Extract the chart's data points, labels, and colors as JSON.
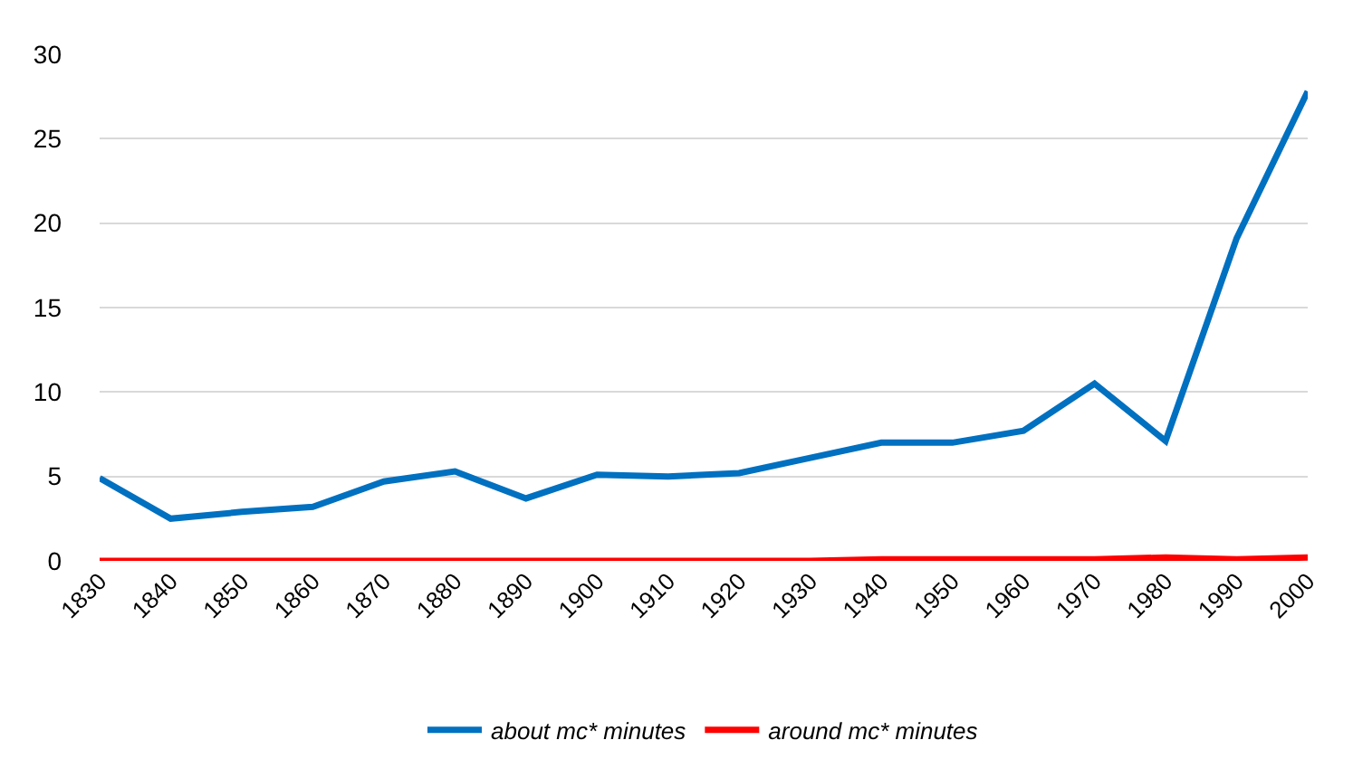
{
  "chart_data": {
    "type": "line",
    "categories": [
      "1830",
      "1840",
      "1850",
      "1860",
      "1870",
      "1880",
      "1890",
      "1900",
      "1910",
      "1920",
      "1930",
      "1940",
      "1950",
      "1960",
      "1970",
      "1980",
      "1990",
      "2000"
    ],
    "series": [
      {
        "name": "about mc* minutes",
        "color": "#0070c0",
        "values": [
          4.9,
          2.5,
          2.9,
          3.2,
          4.7,
          5.3,
          3.7,
          5.1,
          5.0,
          5.2,
          6.1,
          7.0,
          7.0,
          7.7,
          10.5,
          7.1,
          19.1,
          27.8
        ]
      },
      {
        "name": "around mc* minutes",
        "color": "#ff0000",
        "values": [
          0,
          0,
          0,
          0,
          0,
          0,
          0,
          0,
          0,
          0,
          0,
          0.1,
          0.1,
          0.1,
          0.1,
          0.2,
          0.1,
          0.2
        ]
      }
    ],
    "ylim": [
      0,
      30
    ],
    "yticks": [
      0,
      5,
      10,
      15,
      20,
      25,
      30
    ],
    "grid": "y",
    "legend": "bottom",
    "marker": "none",
    "line_style": "solid"
  }
}
